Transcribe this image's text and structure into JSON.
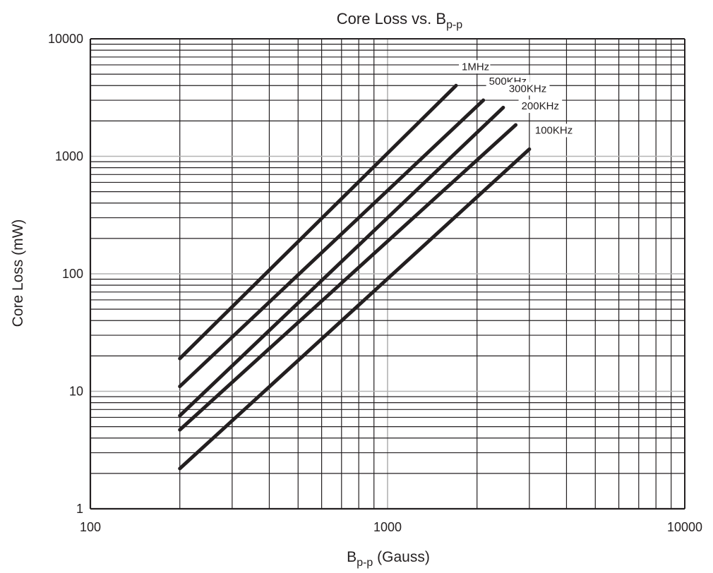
{
  "chart_data": {
    "type": "line",
    "title": "Core Loss vs. B",
    "title_sub": "p-p",
    "xlabel_main": "B",
    "xlabel_sub": "p-p",
    "xlabel_rest": " (Gauss)",
    "ylabel": "Core Loss (mW)",
    "x_scale": "log",
    "y_scale": "log",
    "xlim": [
      100,
      10000
    ],
    "ylim": [
      1,
      10000
    ],
    "x_ticks": [
      "100",
      "1000",
      "10000"
    ],
    "y_ticks": [
      "1",
      "10",
      "100",
      "1000",
      "10000"
    ],
    "grid": true,
    "colors": {
      "line": "#231f20",
      "grid_minor": "#231f20",
      "grid_major": "#b3b3b3"
    },
    "series": [
      {
        "name": "1MHz",
        "x": [
          200,
          1700
        ],
        "y": [
          19,
          4000
        ]
      },
      {
        "name": "500KHz",
        "x": [
          200,
          2100
        ],
        "y": [
          11,
          3000
        ]
      },
      {
        "name": "300KHz",
        "x": [
          200,
          2450
        ],
        "y": [
          6.2,
          2600
        ]
      },
      {
        "name": "200KHz",
        "x": [
          200,
          2700
        ],
        "y": [
          4.7,
          1850
        ]
      },
      {
        "name": "100KHz",
        "x": [
          200,
          3000
        ],
        "y": [
          2.2,
          1150
        ]
      }
    ]
  }
}
